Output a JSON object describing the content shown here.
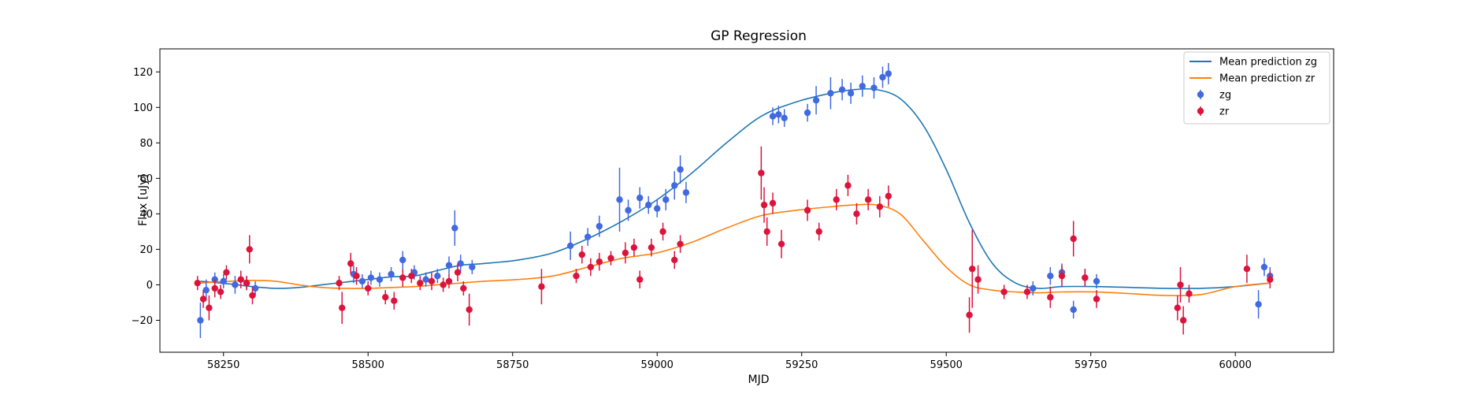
{
  "chart_data": {
    "type": "scatter",
    "title": "GP Regression",
    "xlabel": "MJD",
    "ylabel": "Flux [uJy]",
    "xlim": [
      58140,
      60170
    ],
    "ylim": [
      -38,
      133
    ],
    "xticks": [
      58250,
      58500,
      58750,
      59000,
      59250,
      59500,
      59750,
      60000
    ],
    "yticks": [
      -20,
      0,
      20,
      40,
      60,
      80,
      100,
      120
    ],
    "grid": false,
    "legend_position": "top-right",
    "lines": [
      {
        "name": "Mean prediction zg",
        "color": "#1f77b4",
        "x": [
          58210,
          58260,
          58300,
          58340,
          58380,
          58420,
          58460,
          58500,
          58540,
          58580,
          58620,
          58660,
          58700,
          58760,
          58820,
          58880,
          58940,
          59000,
          59060,
          59120,
          59180,
          59240,
          59300,
          59340,
          59380,
          59420,
          59460,
          59500,
          59540,
          59580,
          59620,
          59660,
          59700,
          59760,
          59820,
          59880,
          59940,
          60000,
          60060
        ],
        "y": [
          2,
          0.5,
          -1,
          -2,
          -1.5,
          0,
          1.5,
          3,
          4.5,
          5,
          8,
          11,
          12,
          14,
          18,
          26,
          36,
          48,
          63,
          80,
          95,
          103,
          108,
          110,
          110,
          105,
          90,
          65,
          35,
          12,
          1,
          -2,
          -1,
          -1,
          -1.5,
          -2,
          -2,
          -1,
          1
        ]
      },
      {
        "name": "Mean prediction zr",
        "color": "#ff7f0e",
        "x": [
          58210,
          58260,
          58300,
          58340,
          58380,
          58420,
          58460,
          58500,
          58540,
          58580,
          58620,
          58660,
          58700,
          58760,
          58820,
          58880,
          58940,
          59000,
          59060,
          59120,
          59180,
          59240,
          59300,
          59340,
          59380,
          59420,
          59460,
          59500,
          59540,
          59580,
          59620,
          59660,
          59700,
          59760,
          59820,
          59880,
          59940,
          60000,
          60060
        ],
        "y": [
          1,
          2,
          2.5,
          2,
          0,
          -1.5,
          -2,
          -2,
          -1.5,
          -1,
          0,
          1,
          2,
          3,
          5,
          10,
          15,
          18,
          24,
          32,
          39,
          42,
          44,
          45,
          45,
          40,
          25,
          10,
          0,
          -3,
          -4,
          -4.5,
          -4,
          -4,
          -5,
          -6,
          -5.5,
          -1,
          1
        ]
      }
    ],
    "series": [
      {
        "name": "zg",
        "color": "#4169e1",
        "x": [
          58210,
          58220,
          58235,
          58250,
          58270,
          58290,
          58305,
          58475,
          58490,
          58505,
          58520,
          58540,
          58560,
          58580,
          58600,
          58620,
          58640,
          58650,
          58660,
          58680,
          58850,
          58880,
          58900,
          58935,
          58950,
          58970,
          58985,
          59000,
          59015,
          59030,
          59040,
          59050,
          59200,
          59210,
          59220,
          59260,
          59275,
          59300,
          59320,
          59335,
          59355,
          59375,
          59390,
          59400,
          59650,
          59680,
          59700,
          59720,
          59740,
          59760,
          60040,
          60050,
          60060
        ],
        "y": [
          -20,
          -3,
          3,
          2,
          0,
          1,
          -2,
          6,
          2,
          4,
          3,
          6,
          14,
          7,
          3,
          5,
          11,
          32,
          12,
          10,
          22,
          27,
          33,
          48,
          42,
          49,
          45,
          43,
          48,
          56,
          65,
          52,
          95,
          96,
          94,
          97,
          104,
          108,
          110,
          108,
          112,
          111,
          117,
          119,
          -2,
          5,
          7,
          -14,
          4,
          2,
          -11,
          10,
          5
        ],
        "err": [
          10,
          6,
          4,
          4,
          5,
          4,
          4,
          5,
          4,
          4,
          4,
          4,
          5,
          4,
          4,
          4,
          5,
          10,
          5,
          4,
          8,
          5,
          6,
          18,
          6,
          6,
          5,
          5,
          6,
          8,
          8,
          6,
          5,
          5,
          5,
          5,
          8,
          9,
          6,
          6,
          6,
          6,
          6,
          6,
          4,
          5,
          5,
          5,
          5,
          4,
          8,
          5,
          5
        ]
      },
      {
        "name": "zr",
        "color": "#dc143c",
        "x": [
          58205,
          58215,
          58225,
          58235,
          58245,
          58255,
          58280,
          58290,
          58295,
          58300,
          58450,
          58455,
          58470,
          58480,
          58500,
          58530,
          58545,
          58560,
          58575,
          58590,
          58610,
          58630,
          58640,
          58655,
          58665,
          58675,
          58800,
          58860,
          58870,
          58885,
          58900,
          58920,
          58945,
          58960,
          58970,
          58990,
          59010,
          59030,
          59040,
          59180,
          59185,
          59190,
          59200,
          59215,
          59260,
          59280,
          59310,
          59330,
          59345,
          59365,
          59385,
          59400,
          59540,
          59545,
          59555,
          59600,
          59640,
          59680,
          59700,
          59720,
          59740,
          59760,
          59900,
          59905,
          59910,
          59920,
          60020,
          60060
        ],
        "y": [
          1,
          -8,
          -13,
          -2,
          -4,
          7,
          3,
          1,
          20,
          -6,
          1,
          -13,
          12,
          5,
          -2,
          -7,
          -9,
          4,
          5,
          1,
          2,
          0,
          2,
          7,
          -2,
          -14,
          -1,
          5,
          17,
          10,
          13,
          15,
          18,
          21,
          3,
          21,
          30,
          14,
          23,
          63,
          45,
          30,
          46,
          23,
          42,
          30,
          48,
          56,
          40,
          48,
          44,
          50,
          -17,
          9,
          3,
          -4,
          -4,
          -7,
          5,
          26,
          4,
          -8,
          -13,
          0,
          -20,
          -5,
          9,
          3
        ],
        "err": [
          4,
          5,
          7,
          5,
          4,
          4,
          5,
          4,
          8,
          5,
          4,
          9,
          6,
          5,
          4,
          4,
          5,
          5,
          4,
          4,
          5,
          4,
          4,
          5,
          4,
          9,
          10,
          4,
          5,
          5,
          5,
          4,
          6,
          5,
          5,
          5,
          5,
          5,
          5,
          15,
          10,
          8,
          6,
          8,
          6,
          5,
          6,
          6,
          6,
          6,
          6,
          6,
          10,
          22,
          8,
          4,
          4,
          6,
          6,
          10,
          5,
          5,
          7,
          10,
          8,
          5,
          8,
          5
        ]
      }
    ]
  }
}
